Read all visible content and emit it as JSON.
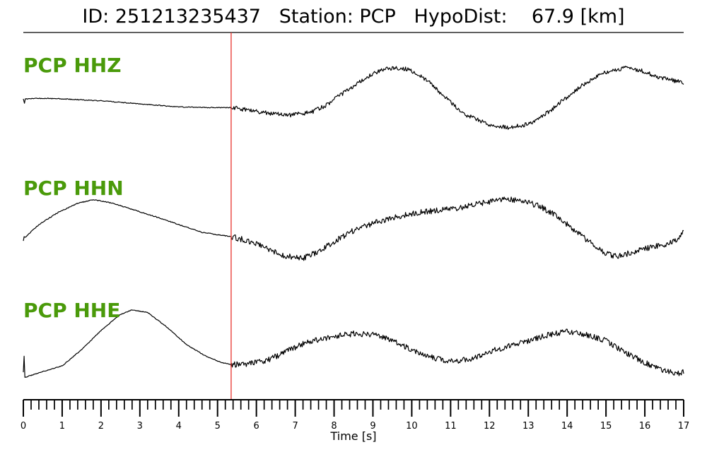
{
  "header": {
    "title": "ID: 251213235437   Station: PCP   HypoDist:    67.9 [km]"
  },
  "chart_data": {
    "type": "line",
    "title": "ID: 251213235437   Station: PCP   HypoDist:    67.9 [km]",
    "xlabel": "Time [s]",
    "ylabel": "",
    "xlim": [
      0,
      17
    ],
    "x_ticks": [
      0,
      1,
      2,
      3,
      4,
      5,
      6,
      7,
      8,
      9,
      10,
      11,
      12,
      13,
      14,
      15,
      16,
      17
    ],
    "minor_tick_step": 0.2,
    "marker_time": 5.35,
    "marker_color": "#e8322d",
    "trace_color": "#000000",
    "label_color": "#4a9a0a",
    "grid": false,
    "series": [
      {
        "name": "PCP HHZ",
        "noise": [
          0.6,
          3.0
        ],
        "points": [
          [
            0,
            0.0
          ],
          [
            0.03,
            -0.07
          ],
          [
            0.05,
            0.0
          ],
          [
            0.5,
            0.01
          ],
          [
            1.0,
            0.0
          ],
          [
            2.0,
            -0.03
          ],
          [
            3.0,
            -0.08
          ],
          [
            4.0,
            -0.13
          ],
          [
            4.7,
            -0.14
          ],
          [
            5.35,
            -0.14
          ],
          [
            5.8,
            -0.18
          ],
          [
            6.3,
            -0.23
          ],
          [
            6.9,
            -0.26
          ],
          [
            7.4,
            -0.22
          ],
          [
            7.8,
            -0.1
          ],
          [
            8.3,
            0.12
          ],
          [
            8.8,
            0.33
          ],
          [
            9.2,
            0.46
          ],
          [
            9.5,
            0.5
          ],
          [
            9.9,
            0.48
          ],
          [
            10.4,
            0.3
          ],
          [
            10.9,
            0.0
          ],
          [
            11.4,
            -0.26
          ],
          [
            12.0,
            -0.41
          ],
          [
            12.5,
            -0.46
          ],
          [
            13.0,
            -0.41
          ],
          [
            13.5,
            -0.22
          ],
          [
            14.0,
            0.03
          ],
          [
            14.5,
            0.27
          ],
          [
            15.0,
            0.43
          ],
          [
            15.5,
            0.5
          ],
          [
            15.9,
            0.46
          ],
          [
            16.4,
            0.34
          ],
          [
            17.0,
            0.26
          ]
        ]
      },
      {
        "name": "PCP HHN",
        "noise": [
          0.6,
          4.0
        ],
        "points": [
          [
            0,
            -0.42
          ],
          [
            0.02,
            -0.35
          ],
          [
            0.05,
            -0.36
          ],
          [
            0.4,
            -0.15
          ],
          [
            0.9,
            0.05
          ],
          [
            1.4,
            0.2
          ],
          [
            1.8,
            0.26
          ],
          [
            2.3,
            0.2
          ],
          [
            2.9,
            0.08
          ],
          [
            3.4,
            -0.02
          ],
          [
            4.0,
            -0.15
          ],
          [
            4.6,
            -0.28
          ],
          [
            5.35,
            -0.35
          ],
          [
            5.8,
            -0.42
          ],
          [
            6.3,
            -0.55
          ],
          [
            6.7,
            -0.67
          ],
          [
            7.2,
            -0.7
          ],
          [
            7.6,
            -0.6
          ],
          [
            8.0,
            -0.43
          ],
          [
            8.5,
            -0.25
          ],
          [
            9.0,
            -0.13
          ],
          [
            9.5,
            -0.04
          ],
          [
            10.0,
            0.03
          ],
          [
            10.6,
            0.08
          ],
          [
            11.2,
            0.12
          ],
          [
            11.8,
            0.2
          ],
          [
            12.3,
            0.27
          ],
          [
            12.8,
            0.25
          ],
          [
            13.3,
            0.15
          ],
          [
            13.7,
            0.0
          ],
          [
            14.2,
            -0.25
          ],
          [
            14.6,
            -0.45
          ],
          [
            15.0,
            -0.63
          ],
          [
            15.3,
            -0.68
          ],
          [
            15.7,
            -0.6
          ],
          [
            16.2,
            -0.52
          ],
          [
            16.6,
            -0.47
          ],
          [
            16.9,
            -0.37
          ],
          [
            17.0,
            -0.25
          ]
        ]
      },
      {
        "name": "PCP HHE",
        "noise": [
          0.5,
          4.0
        ],
        "points": [
          [
            0,
            -0.55
          ],
          [
            0.02,
            -0.3
          ],
          [
            0.04,
            -0.63
          ],
          [
            0.5,
            -0.54
          ],
          [
            1.0,
            -0.45
          ],
          [
            1.5,
            -0.2
          ],
          [
            2.0,
            0.1
          ],
          [
            2.5,
            0.35
          ],
          [
            2.8,
            0.42
          ],
          [
            3.2,
            0.38
          ],
          [
            3.7,
            0.15
          ],
          [
            4.2,
            -0.12
          ],
          [
            4.7,
            -0.3
          ],
          [
            5.1,
            -0.4
          ],
          [
            5.35,
            -0.43
          ],
          [
            5.8,
            -0.42
          ],
          [
            6.3,
            -0.36
          ],
          [
            6.8,
            -0.22
          ],
          [
            7.3,
            -0.08
          ],
          [
            7.9,
            0.0
          ],
          [
            8.5,
            0.05
          ],
          [
            9.0,
            0.03
          ],
          [
            9.5,
            -0.05
          ],
          [
            10.0,
            -0.2
          ],
          [
            10.6,
            -0.33
          ],
          [
            11.0,
            -0.38
          ],
          [
            11.5,
            -0.35
          ],
          [
            12.0,
            -0.23
          ],
          [
            12.5,
            -0.14
          ],
          [
            13.0,
            -0.06
          ],
          [
            13.5,
            0.03
          ],
          [
            14.0,
            0.08
          ],
          [
            14.5,
            0.03
          ],
          [
            15.0,
            -0.06
          ],
          [
            15.5,
            -0.25
          ],
          [
            16.0,
            -0.4
          ],
          [
            16.4,
            -0.5
          ],
          [
            16.8,
            -0.58
          ],
          [
            17.0,
            -0.55
          ]
        ]
      }
    ]
  }
}
